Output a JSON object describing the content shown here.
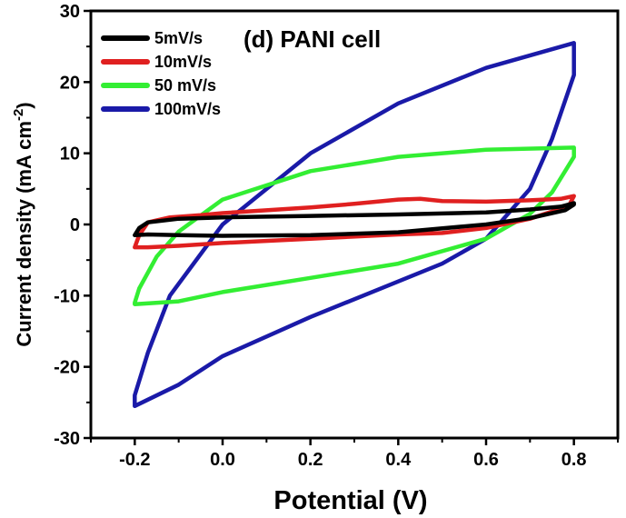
{
  "chart_data": {
    "type": "line",
    "title": "(d) PANI cell",
    "xlabel": "Potential (V)",
    "ylabel_main": "Current density (mA cm",
    "ylabel_sup": "-2",
    "ylabel_close": ")",
    "xlim": [
      -0.3,
      0.9
    ],
    "ylim": [
      -30,
      30
    ],
    "xticks": [
      -0.2,
      0.0,
      0.2,
      0.4,
      0.6,
      0.8
    ],
    "xtick_labels": [
      "-0.2",
      "0.0",
      "0.2",
      "0.4",
      "0.6",
      "0.8"
    ],
    "yticks": [
      -30,
      -20,
      -10,
      0,
      10,
      20,
      30
    ],
    "ytick_labels": [
      "-30",
      "-20",
      "-10",
      "0",
      "10",
      "20",
      "30"
    ],
    "grid": false,
    "legend_position": "top-left",
    "series": [
      {
        "name": "5mV/s",
        "color": "#000000",
        "x": [
          -0.2,
          -0.19,
          -0.17,
          -0.1,
          0.0,
          0.2,
          0.4,
          0.6,
          0.7,
          0.77,
          0.8,
          0.8,
          0.78,
          0.7,
          0.6,
          0.4,
          0.2,
          0.0,
          -0.1,
          -0.17,
          -0.2
        ],
        "y": [
          -1.5,
          -0.5,
          0.3,
          0.8,
          1.0,
          1.2,
          1.4,
          1.7,
          2.1,
          2.5,
          3.0,
          2.8,
          2.0,
          0.9,
          0.0,
          -1.1,
          -1.5,
          -1.6,
          -1.5,
          -1.4,
          -1.5
        ]
      },
      {
        "name": "10mV/s",
        "color": "#e02020",
        "x": [
          -0.2,
          -0.19,
          -0.17,
          -0.12,
          -0.05,
          0.0,
          0.2,
          0.3,
          0.4,
          0.45,
          0.5,
          0.6,
          0.7,
          0.77,
          0.8,
          0.79,
          0.76,
          0.7,
          0.6,
          0.5,
          0.4,
          0.2,
          0.0,
          -0.1,
          -0.17,
          -0.2
        ],
        "y": [
          -3.2,
          -1.5,
          0.3,
          1.0,
          1.3,
          1.6,
          2.4,
          2.9,
          3.5,
          3.6,
          3.3,
          3.2,
          3.4,
          3.6,
          4.0,
          2.8,
          2.0,
          0.8,
          -0.5,
          -1.2,
          -1.4,
          -2.0,
          -2.6,
          -3.0,
          -3.2,
          -3.2
        ]
      },
      {
        "name": "50 mV/s",
        "color": "#33ee33",
        "x": [
          -0.2,
          -0.19,
          -0.15,
          -0.1,
          0.0,
          0.2,
          0.4,
          0.6,
          0.8,
          0.8,
          0.75,
          0.7,
          0.6,
          0.4,
          0.2,
          0.0,
          -0.1,
          -0.2
        ],
        "y": [
          -11.0,
          -9.0,
          -4.5,
          -1.0,
          3.5,
          7.5,
          9.5,
          10.5,
          10.8,
          9.5,
          4.5,
          1.5,
          -2.0,
          -5.5,
          -7.5,
          -9.5,
          -10.8,
          -11.2
        ]
      },
      {
        "name": "100mV/s",
        "color": "#1a1aa8",
        "x": [
          -0.2,
          -0.17,
          -0.12,
          0.0,
          0.2,
          0.4,
          0.6,
          0.8,
          0.8,
          0.75,
          0.7,
          0.6,
          0.5,
          0.4,
          0.2,
          0.0,
          -0.1,
          -0.2
        ],
        "y": [
          -24.0,
          -18.0,
          -10.0,
          0.0,
          10.0,
          17.0,
          22.0,
          25.5,
          21.0,
          12.0,
          5.0,
          -2.0,
          -5.5,
          -8.0,
          -13.0,
          -18.5,
          -22.5,
          -25.5
        ]
      }
    ]
  }
}
